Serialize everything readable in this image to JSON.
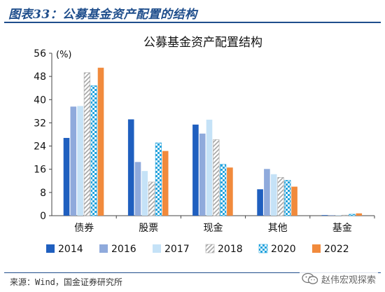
{
  "header": {
    "title": "图表33：公募基金资产配置的结构"
  },
  "footer": {
    "source": "来源：Wind，国金证券研究所",
    "watermark": "赵伟宏观探索",
    "watermark_icon": "wechat-icon"
  },
  "chart_data": {
    "type": "bar",
    "title": "公募基金资产配置结构",
    "unit_label": "(%)",
    "categories": [
      "债券",
      "股票",
      "现金",
      "其他",
      "基金"
    ],
    "ylim": [
      0,
      56
    ],
    "yticks": [
      0,
      8,
      16,
      24,
      32,
      40,
      48,
      56
    ],
    "grid": false,
    "legend_position": "bottom",
    "series": [
      {
        "name": "2014",
        "color": "#1f5fbf",
        "pattern": "solid",
        "values": [
          26.8,
          33.2,
          31.4,
          9.1,
          0.2
        ]
      },
      {
        "name": "2016",
        "color": "#8faadc",
        "pattern": "solid",
        "values": [
          37.6,
          18.5,
          28.3,
          16.1,
          0.1
        ]
      },
      {
        "name": "2017",
        "color": "#c5e2f7",
        "pattern": "solid",
        "values": [
          37.8,
          15.4,
          33.1,
          14.3,
          0.2
        ]
      },
      {
        "name": "2018",
        "color": "#a6a6a6",
        "pattern": "dashed-diagonal",
        "values": [
          49.3,
          11.6,
          26.2,
          13.2,
          0.1
        ]
      },
      {
        "name": "2020",
        "color": "#23a3dd",
        "pattern": "checker",
        "values": [
          44.8,
          25.1,
          17.7,
          12.2,
          0.5
        ]
      },
      {
        "name": "2022",
        "color": "#f18a3c",
        "pattern": "solid",
        "values": [
          51.0,
          22.3,
          16.6,
          10.0,
          0.8
        ]
      }
    ]
  }
}
